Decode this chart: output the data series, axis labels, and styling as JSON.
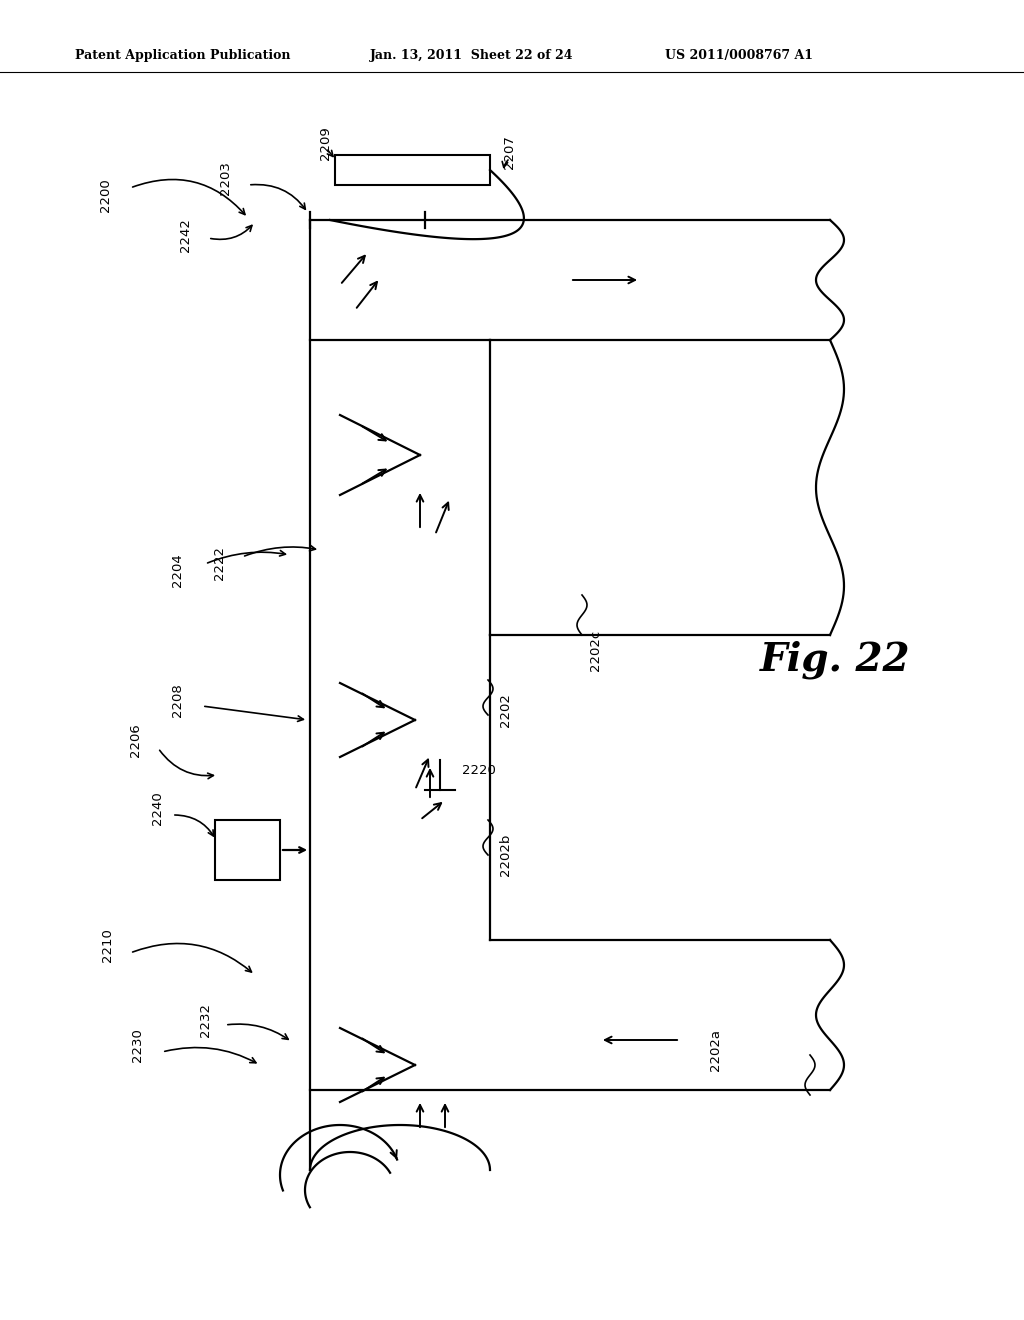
{
  "bg_color": "#ffffff",
  "header_text": "Patent Application Publication",
  "header_date": "Jan. 13, 2011  Sheet 22 of 24",
  "header_patent": "US 2011/0008767 A1",
  "fig_label": "Fig. 22",
  "line_color": "#000000",
  "lw": 1.6
}
